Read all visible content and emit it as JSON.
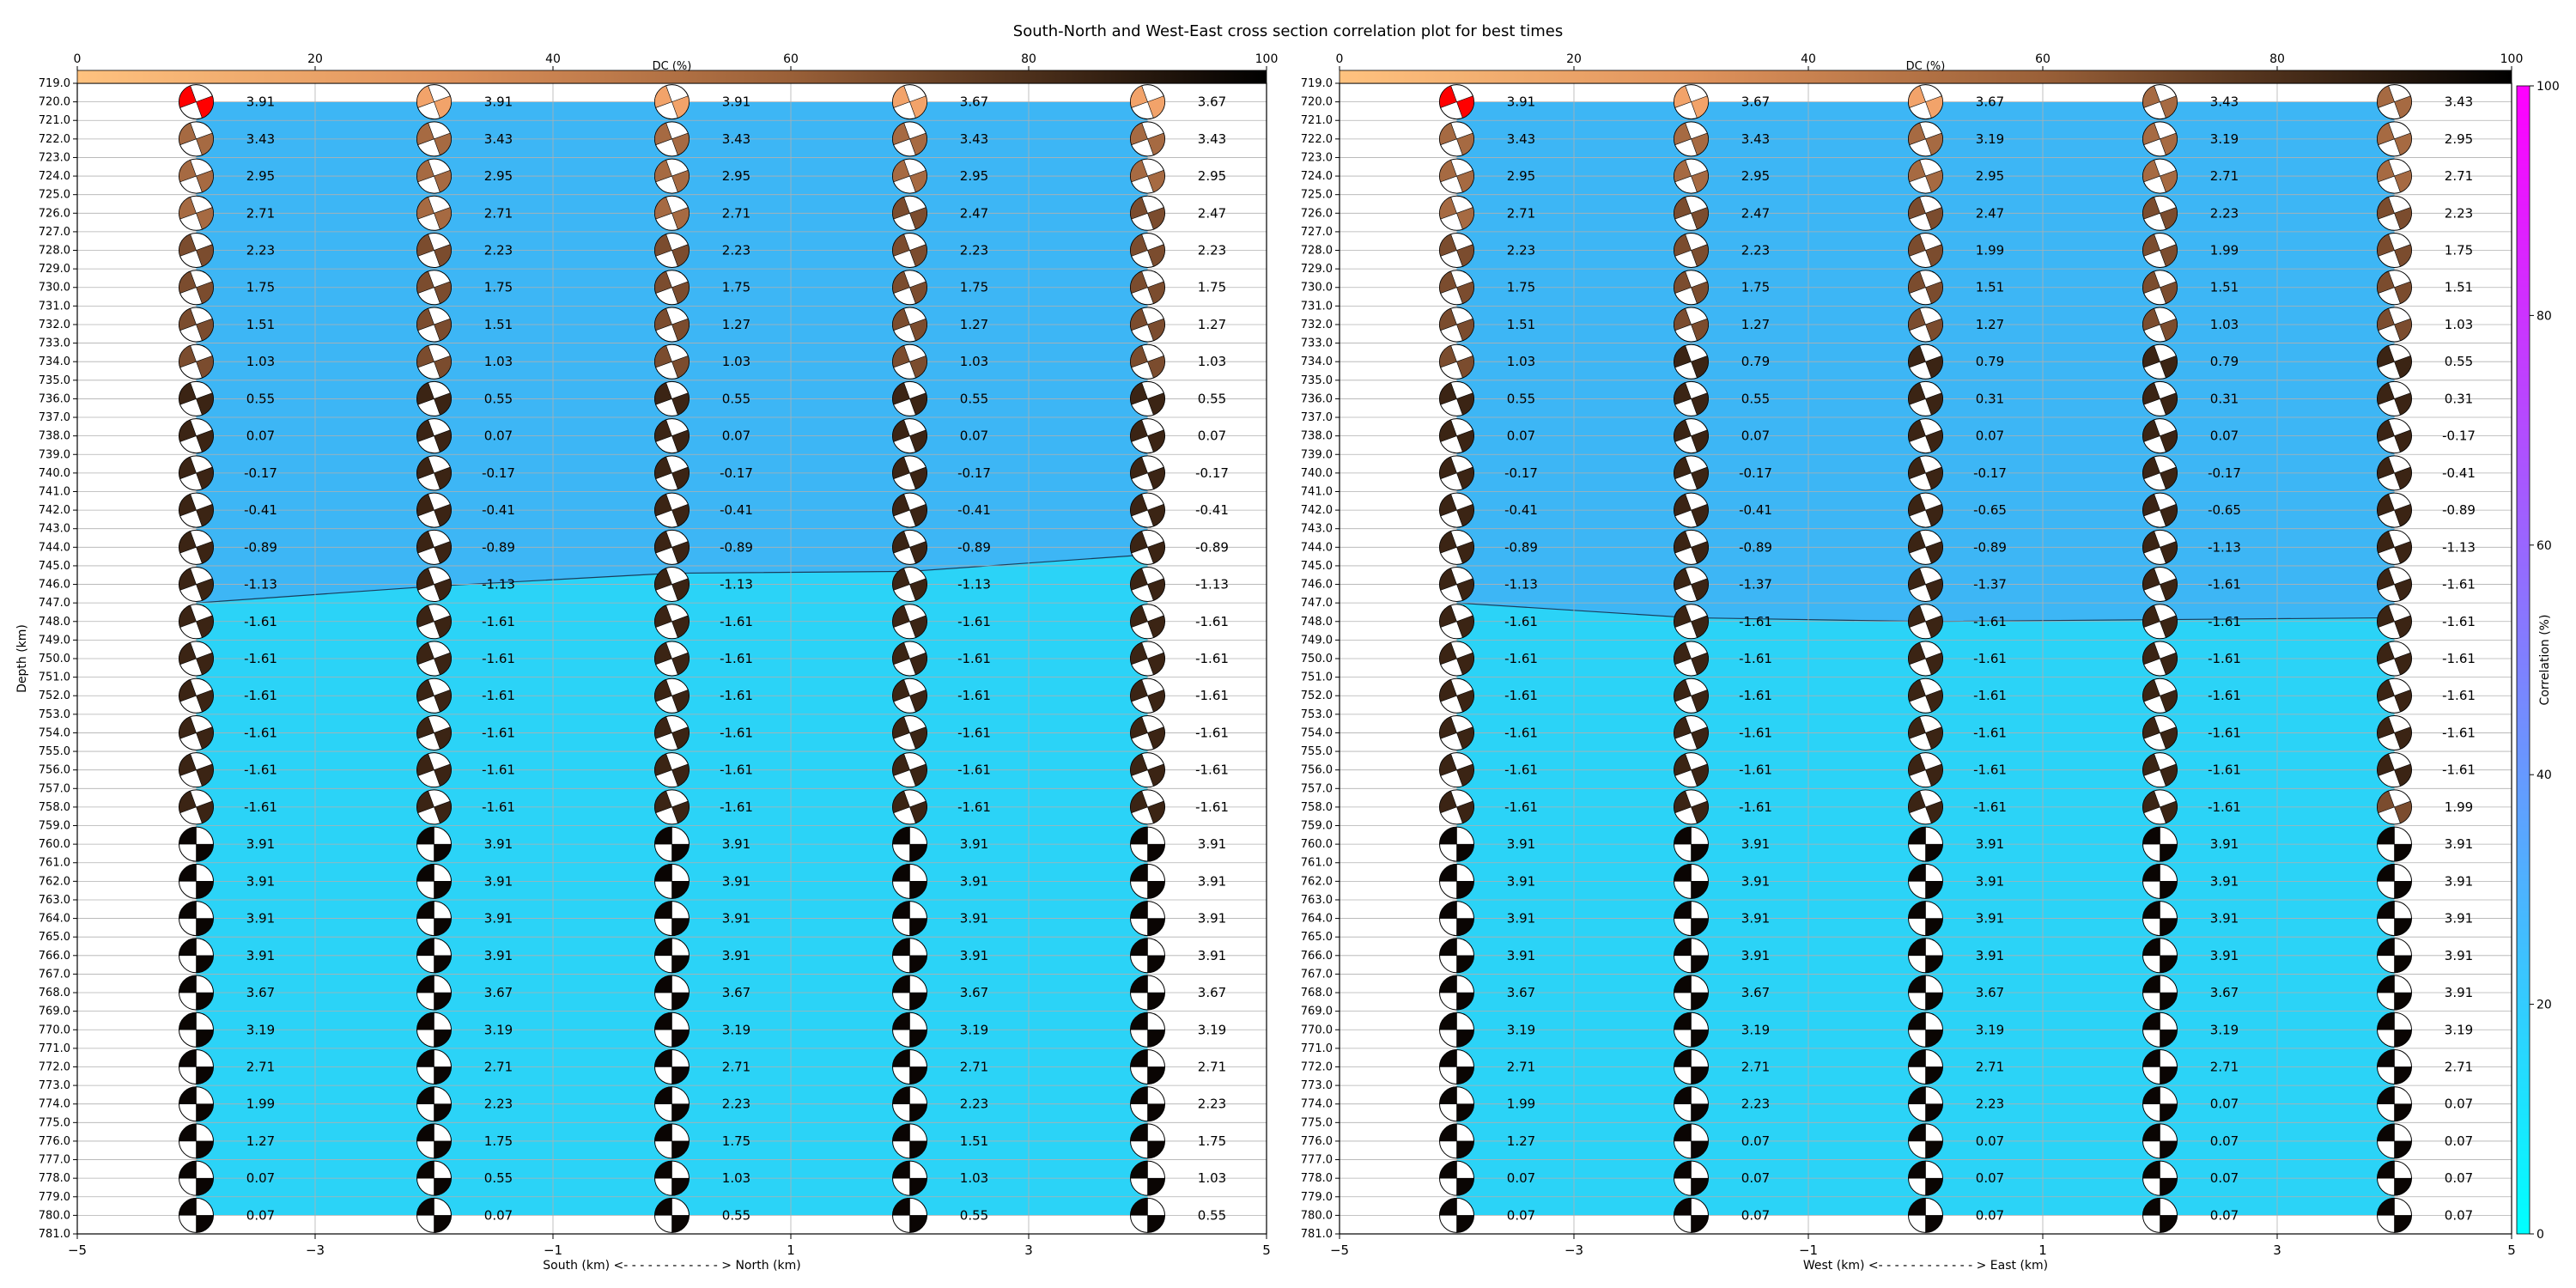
{
  "title": "South-North and West-East cross section correlation plot for best times",
  "dc_colorbar": {
    "label": "DC (%)",
    "ticks": [
      0,
      20,
      40,
      60,
      80,
      100
    ]
  },
  "corr_colorbar": {
    "label": "Correlation (%)",
    "ticks": [
      0,
      20,
      40,
      60,
      80,
      100
    ]
  },
  "chart_data": [
    {
      "type": "heatmap",
      "xlabel": "South (km) <- - - - - - - - - - - - > North (km)",
      "ylabel": "Depth (km)",
      "xlim": [
        -5,
        5
      ],
      "ylim": [
        781,
        719
      ],
      "x_ticks": [
        -5,
        -3,
        -1,
        1,
        3,
        5
      ],
      "y_ticks": [
        719,
        720,
        721,
        722,
        723,
        724,
        725,
        726,
        727,
        728,
        729,
        730,
        731,
        732,
        733,
        734,
        735,
        736,
        737,
        738,
        739,
        740,
        741,
        742,
        743,
        744,
        745,
        746,
        747,
        748,
        749,
        750,
        751,
        752,
        753,
        754,
        755,
        756,
        757,
        758,
        759,
        760,
        761,
        762,
        763,
        764,
        765,
        766,
        767,
        768,
        769,
        770,
        771,
        772,
        773,
        774,
        775,
        776,
        777,
        778,
        779,
        780,
        781
      ],
      "x": [
        -4,
        -2,
        0,
        2,
        4
      ],
      "depths": [
        720,
        722,
        724,
        726,
        728,
        730,
        732,
        734,
        736,
        738,
        740,
        742,
        744,
        746,
        748,
        750,
        752,
        754,
        756,
        758,
        760,
        762,
        764,
        766,
        768,
        770,
        772,
        774,
        776,
        778,
        780
      ],
      "boundary_depth": [
        747.0,
        746.1,
        745.4,
        745.3,
        744.4
      ],
      "values": [
        [
          3.91,
          3.43,
          2.95,
          2.71,
          2.23,
          1.75,
          1.51,
          1.03,
          0.55,
          0.07,
          -0.17,
          -0.41,
          -0.89,
          -1.13,
          -1.61,
          -1.61,
          -1.61,
          -1.61,
          -1.61,
          -1.61,
          3.91,
          3.91,
          3.91,
          3.91,
          3.67,
          3.19,
          2.71,
          1.99,
          1.27,
          0.07,
          0.07
        ],
        [
          3.91,
          3.43,
          2.95,
          2.71,
          2.23,
          1.75,
          1.51,
          1.03,
          0.55,
          0.07,
          -0.17,
          -0.41,
          -0.89,
          -1.13,
          -1.61,
          -1.61,
          -1.61,
          -1.61,
          -1.61,
          -1.61,
          3.91,
          3.91,
          3.91,
          3.91,
          3.67,
          3.19,
          2.71,
          2.23,
          1.75,
          0.55,
          0.07
        ],
        [
          3.91,
          3.43,
          2.95,
          2.71,
          2.23,
          1.75,
          1.27,
          1.03,
          0.55,
          0.07,
          -0.17,
          -0.41,
          -0.89,
          -1.13,
          -1.61,
          -1.61,
          -1.61,
          -1.61,
          -1.61,
          -1.61,
          3.91,
          3.91,
          3.91,
          3.91,
          3.67,
          3.19,
          2.71,
          2.23,
          1.75,
          1.03,
          0.55
        ],
        [
          3.67,
          3.43,
          2.95,
          2.47,
          2.23,
          1.75,
          1.27,
          1.03,
          0.55,
          0.07,
          -0.17,
          -0.41,
          -0.89,
          -1.13,
          -1.61,
          -1.61,
          -1.61,
          -1.61,
          -1.61,
          -1.61,
          3.91,
          3.91,
          3.91,
          3.91,
          3.67,
          3.19,
          2.71,
          2.23,
          1.51,
          1.03,
          0.55
        ],
        [
          3.67,
          3.43,
          2.95,
          2.47,
          2.23,
          1.75,
          1.27,
          1.03,
          0.55,
          0.07,
          -0.17,
          -0.41,
          -0.89,
          -1.13,
          -1.61,
          -1.61,
          -1.61,
          -1.61,
          -1.61,
          -1.61,
          3.91,
          3.91,
          3.91,
          3.91,
          3.67,
          3.19,
          2.71,
          2.23,
          1.75,
          1.03,
          0.55
        ]
      ]
    },
    {
      "type": "heatmap",
      "xlabel": "West (km) <- - - - - - - - - - - - > East (km)",
      "ylabel": "",
      "xlim": [
        -5,
        5
      ],
      "ylim": [
        781,
        719
      ],
      "x_ticks": [
        -5,
        -3,
        -1,
        1,
        3,
        5
      ],
      "y_ticks": [
        719,
        720,
        721,
        722,
        723,
        724,
        725,
        726,
        727,
        728,
        729,
        730,
        731,
        732,
        733,
        734,
        735,
        736,
        737,
        738,
        739,
        740,
        741,
        742,
        743,
        744,
        745,
        746,
        747,
        748,
        749,
        750,
        751,
        752,
        753,
        754,
        755,
        756,
        757,
        758,
        759,
        760,
        761,
        762,
        763,
        764,
        765,
        766,
        767,
        768,
        769,
        770,
        771,
        772,
        773,
        774,
        775,
        776,
        777,
        778,
        779,
        780,
        781
      ],
      "x": [
        -4,
        -2,
        0,
        2,
        4
      ],
      "depths": [
        720,
        722,
        724,
        726,
        728,
        730,
        732,
        734,
        736,
        738,
        740,
        742,
        744,
        746,
        748,
        750,
        752,
        754,
        756,
        758,
        760,
        762,
        764,
        766,
        768,
        770,
        772,
        774,
        776,
        778,
        780
      ],
      "boundary_depth": [
        747.0,
        747.8,
        748.0,
        747.9,
        747.8
      ],
      "values": [
        [
          3.91,
          3.43,
          2.95,
          2.71,
          2.23,
          1.75,
          1.51,
          1.03,
          0.55,
          0.07,
          -0.17,
          -0.41,
          -0.89,
          -1.13,
          -1.61,
          -1.61,
          -1.61,
          -1.61,
          -1.61,
          -1.61,
          3.91,
          3.91,
          3.91,
          3.91,
          3.67,
          3.19,
          2.71,
          1.99,
          1.27,
          0.07,
          0.07
        ],
        [
          3.67,
          3.43,
          2.95,
          2.47,
          2.23,
          1.75,
          1.27,
          0.79,
          0.55,
          0.07,
          -0.17,
          -0.41,
          -0.89,
          -1.37,
          -1.61,
          -1.61,
          -1.61,
          -1.61,
          -1.61,
          -1.61,
          3.91,
          3.91,
          3.91,
          3.91,
          3.67,
          3.19,
          2.71,
          2.23,
          0.07,
          0.07,
          0.07
        ],
        [
          3.67,
          3.19,
          2.95,
          2.47,
          1.99,
          1.51,
          1.27,
          0.79,
          0.31,
          0.07,
          -0.17,
          -0.65,
          -0.89,
          -1.37,
          -1.61,
          -1.61,
          -1.61,
          -1.61,
          -1.61,
          -1.61,
          3.91,
          3.91,
          3.91,
          3.91,
          3.67,
          3.19,
          2.71,
          2.23,
          0.07,
          0.07,
          0.07
        ],
        [
          3.43,
          3.19,
          2.71,
          2.23,
          1.99,
          1.51,
          1.03,
          0.79,
          0.31,
          0.07,
          -0.17,
          -0.65,
          -1.13,
          -1.61,
          -1.61,
          -1.61,
          -1.61,
          -1.61,
          -1.61,
          -1.61,
          3.91,
          3.91,
          3.91,
          3.91,
          3.67,
          3.19,
          2.71,
          0.07,
          0.07,
          0.07,
          0.07
        ],
        [
          3.43,
          2.95,
          2.71,
          2.23,
          1.75,
          1.51,
          1.03,
          0.55,
          0.31,
          -0.17,
          -0.41,
          -0.89,
          -1.13,
          -1.61,
          -1.61,
          -1.61,
          -1.61,
          -1.61,
          -1.61,
          1.99,
          3.91,
          3.91,
          3.91,
          3.91,
          3.91,
          3.19,
          2.71,
          0.07,
          0.07,
          0.07,
          0.07
        ]
      ]
    }
  ]
}
